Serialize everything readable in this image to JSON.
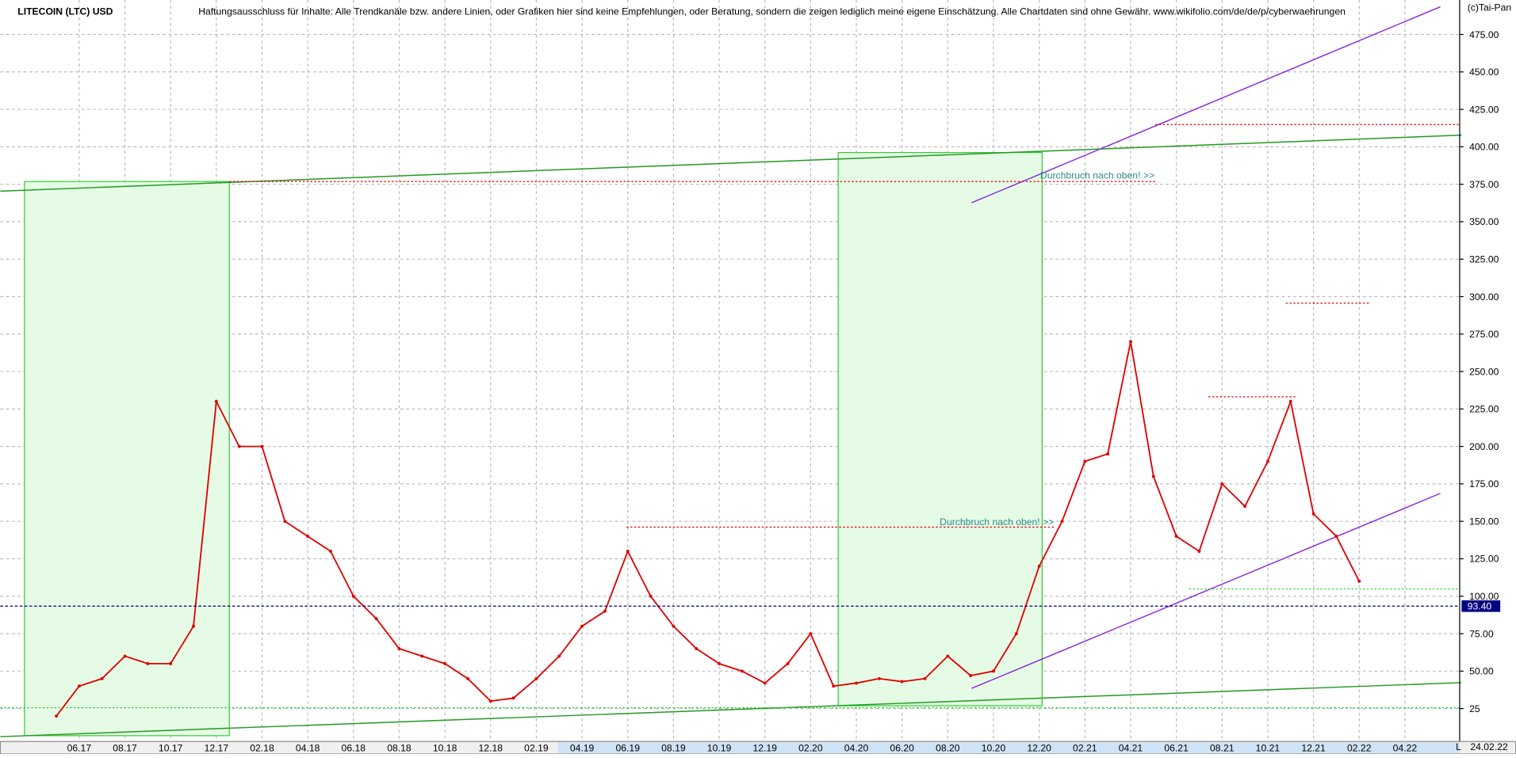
{
  "chart_data": {
    "type": "line",
    "title": "LITECOIN (LTC) USD",
    "subtitle": "Haftungsausschluss für Inhalte: Alle Trendkanäle bzw. andere Linien, oder Grafiken hier sind keine Empfehlungen, oder Beratung, sondern die zeigen lediglich meine eigene Einschätzung. Alle Chartdaten sind ohne Gewähr.  www.wikifolio.com/de/de/p/cyberwaehrungen",
    "credit": "(c)Tai-Pan",
    "date_label": "24.02.22",
    "corner_label": "L",
    "annotations": [
      "Durchbruch nach oben! >>",
      "Durchbruch nach oben! >>"
    ],
    "categories": [
      null,
      "06.17",
      null,
      "08.17",
      null,
      "10.17",
      null,
      "12.17",
      null,
      "02.18",
      null,
      "04.18",
      null,
      "06.18",
      null,
      "08.18",
      null,
      "10.18",
      null,
      "12.18",
      null,
      "02.19",
      null,
      "04.19",
      null,
      "06.19",
      null,
      "08.19",
      null,
      "10.19",
      null,
      "12.19",
      null,
      "02.20",
      null,
      "04.20",
      null,
      "06.20",
      null,
      "08.20",
      null,
      "10.20",
      null,
      "12.20",
      null,
      "02.21",
      null,
      "04.21",
      null,
      "06.21",
      null,
      "08.21",
      null,
      "10.21",
      null,
      "12.21",
      null,
      "02.22",
      null,
      "04.22"
    ],
    "series": [
      {
        "color": "#e00000",
        "values": [
          20,
          40,
          45,
          60,
          55,
          55,
          80,
          230,
          200,
          200,
          150,
          140,
          130,
          100,
          85,
          65,
          60,
          55,
          45,
          30,
          32,
          45,
          60,
          80,
          90,
          130,
          100,
          80,
          65,
          55,
          50,
          42,
          55,
          75,
          40,
          42,
          45,
          43,
          45,
          60,
          47,
          50,
          75,
          120,
          150,
          190,
          195,
          270,
          180,
          140,
          130,
          175,
          160,
          190,
          230,
          155,
          140,
          110,
          null,
          null
        ]
      }
    ],
    "reference_lines": [
      {
        "value": 93.4,
        "label": "93.40",
        "color": "#000080"
      }
    ],
    "ylim": [
      2,
      498
    ],
    "yticks": [
      25,
      {
        "value": 50,
        "label": "50.00"
      },
      {
        "value": 75,
        "label": "75.00"
      },
      {
        "value": 100,
        "label": "100.00"
      },
      {
        "value": 125,
        "label": "125.00"
      },
      {
        "value": 150,
        "label": "150.00"
      },
      {
        "value": 175,
        "label": "175.00"
      },
      {
        "value": 200,
        "label": "200.00"
      },
      {
        "value": 225,
        "label": "225.00"
      },
      {
        "value": 250,
        "label": "250.00"
      },
      {
        "value": 275,
        "label": "275.00"
      },
      {
        "value": 300,
        "label": "300.00"
      },
      {
        "value": 325,
        "label": "325.00"
      },
      {
        "value": 350,
        "label": "350.00"
      },
      {
        "value": 375,
        "label": "375.00"
      },
      {
        "value": 400,
        "label": "400.00"
      },
      {
        "value": 425,
        "label": "425.00"
      },
      {
        "value": 450,
        "label": "450.00"
      },
      {
        "value": 475,
        "label": "475.00"
      }
    ],
    "grid": true
  }
}
